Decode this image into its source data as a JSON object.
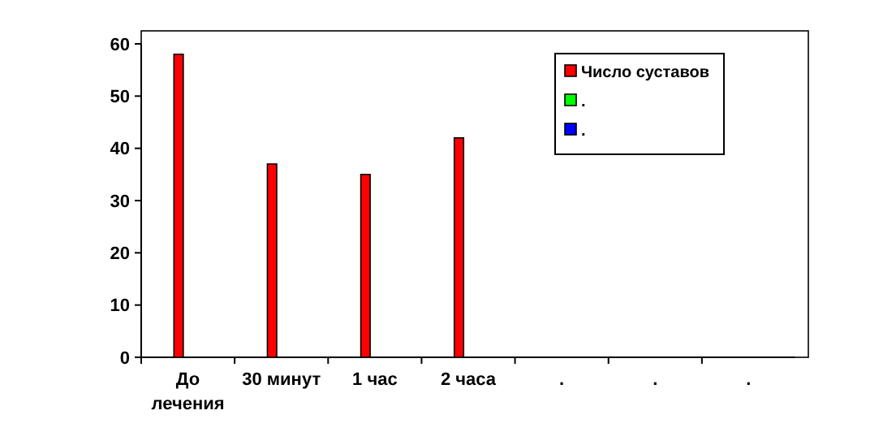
{
  "chart_data": {
    "type": "bar",
    "categories": [
      "До лечения",
      "30 минут",
      "1 час",
      "2 часа",
      ".",
      ".",
      "."
    ],
    "series": [
      {
        "name": "Число суставов",
        "color": "#ff0000",
        "values": [
          58,
          37,
          35,
          42,
          null,
          null,
          null
        ]
      },
      {
        "name": ".",
        "color": "#00ff00",
        "values": [
          null,
          null,
          null,
          null,
          null,
          null,
          null
        ]
      },
      {
        "name": ".",
        "color": "#0000ff",
        "values": [
          null,
          null,
          null,
          null,
          null,
          null,
          null
        ]
      }
    ],
    "ylim": [
      0,
      60
    ],
    "yticks": [
      0,
      10,
      20,
      30,
      40,
      50,
      60
    ],
    "grid": false,
    "legend": "top right"
  }
}
